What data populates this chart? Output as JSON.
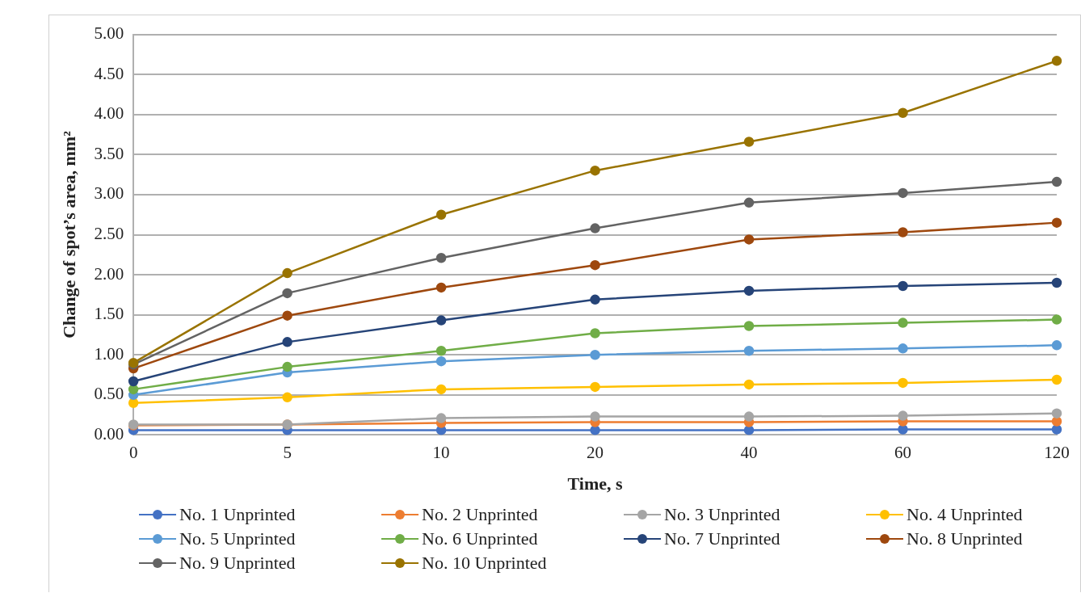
{
  "chart_data": {
    "type": "line",
    "xlabel": "Time, s",
    "ylabel": "Change of spot’s area, mm²",
    "categories": [
      "0",
      "5",
      "10",
      "20",
      "40",
      "60",
      "120"
    ],
    "ylim": [
      0,
      5
    ],
    "yticks": [
      {
        "value": 0,
        "label": "0.00"
      },
      {
        "value": 0.5,
        "label": "0.50"
      },
      {
        "value": 1,
        "label": "1.00"
      },
      {
        "value": 1.5,
        "label": "1.50"
      },
      {
        "value": 2,
        "label": "2.00"
      },
      {
        "value": 2.5,
        "label": "2.50"
      },
      {
        "value": 3,
        "label": "3.00"
      },
      {
        "value": 3.5,
        "label": "3.50"
      },
      {
        "value": 4,
        "label": "4.00"
      },
      {
        "value": 4.5,
        "label": "4.50"
      },
      {
        "value": 5,
        "label": "5.00"
      }
    ],
    "grid": "y",
    "legend": "bottom",
    "marker": "circle",
    "line_style": "solid",
    "series": [
      {
        "name": "No. 1 Unprinted",
        "color": "#4472c4",
        "values": [
          0.06,
          0.06,
          0.06,
          0.06,
          0.06,
          0.07,
          0.07
        ]
      },
      {
        "name": "No. 2 Unprinted",
        "color": "#ed7d31",
        "values": [
          0.12,
          0.13,
          0.15,
          0.16,
          0.16,
          0.17,
          0.17
        ]
      },
      {
        "name": "No. 3 Unprinted",
        "color": "#a5a5a5",
        "values": [
          0.13,
          0.13,
          0.21,
          0.23,
          0.23,
          0.24,
          0.27
        ]
      },
      {
        "name": "No. 4 Unprinted",
        "color": "#ffc000",
        "values": [
          0.4,
          0.47,
          0.57,
          0.6,
          0.63,
          0.65,
          0.69
        ]
      },
      {
        "name": "No. 5 Unprinted",
        "color": "#5b9bd5",
        "values": [
          0.5,
          0.78,
          0.92,
          1.0,
          1.05,
          1.08,
          1.12
        ]
      },
      {
        "name": "No. 6 Unprinted",
        "color": "#70ad47",
        "values": [
          0.57,
          0.85,
          1.05,
          1.27,
          1.36,
          1.4,
          1.44
        ]
      },
      {
        "name": "No. 7 Unprinted",
        "color": "#264478",
        "values": [
          0.67,
          1.16,
          1.43,
          1.69,
          1.8,
          1.86,
          1.9
        ]
      },
      {
        "name": "No. 8 Unprinted",
        "color": "#9e480e",
        "values": [
          0.83,
          1.49,
          1.84,
          2.12,
          2.44,
          2.53,
          2.65
        ]
      },
      {
        "name": "No. 9 Unprinted",
        "color": "#636363",
        "values": [
          0.88,
          1.77,
          2.21,
          2.58,
          2.9,
          3.02,
          3.16
        ]
      },
      {
        "name": "No. 10 Unprinted",
        "color": "#997300",
        "values": [
          0.9,
          2.02,
          2.75,
          3.3,
          3.66,
          4.02,
          4.67
        ]
      }
    ]
  }
}
